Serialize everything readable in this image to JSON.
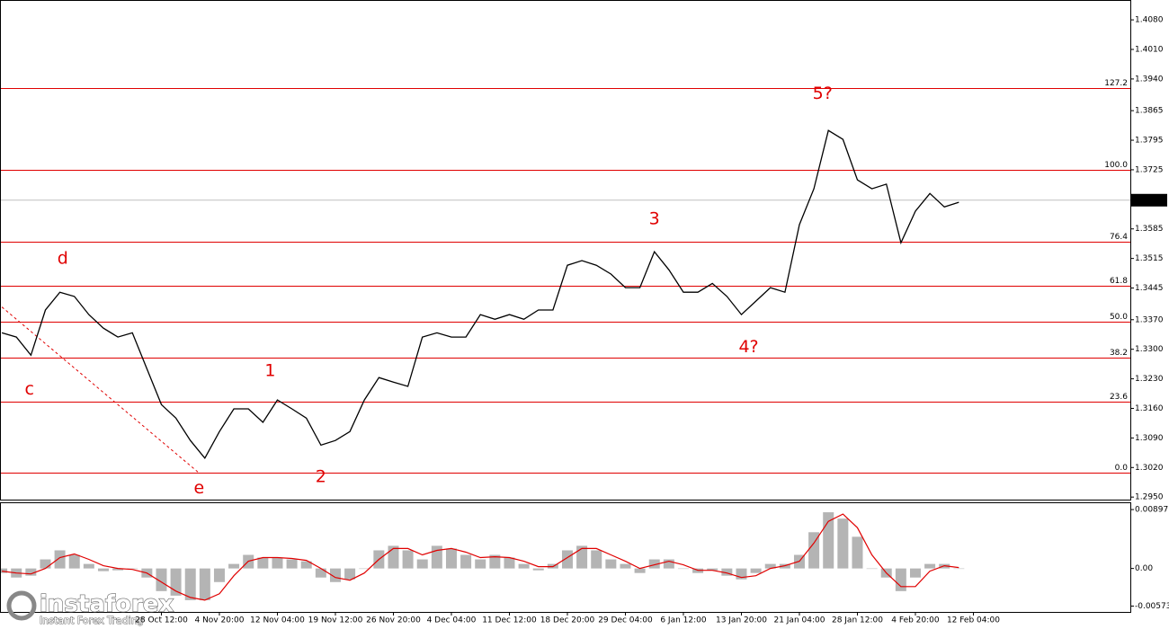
{
  "chart_data": [
    {
      "type": "line",
      "color": "#000000",
      "categories": [
        null,
        null,
        null,
        null,
        null,
        null,
        null,
        null,
        null,
        null,
        null,
        "28 Oct 12:00",
        null,
        null,
        null,
        "4 Nov 20:00",
        null,
        null,
        null,
        "12 Nov 04:00",
        null,
        null,
        null,
        "19 Nov 12:00",
        null,
        null,
        null,
        "26 Nov 20:00",
        null,
        null,
        null,
        "4 Dec 04:00",
        null,
        null,
        null,
        "11 Dec 12:00",
        null,
        null,
        null,
        "18 Dec 20:00",
        null,
        null,
        null,
        "29 Dec 04:00",
        null,
        null,
        null,
        "6 Jan 12:00",
        null,
        null,
        null,
        "13 Jan 20:00",
        null,
        null,
        null,
        "21 Jan 04:00",
        null,
        null,
        null,
        "28 Jan 12:00",
        null,
        null,
        null,
        "4 Feb 20:00",
        null,
        null,
        null,
        "12 Feb 04:00"
      ],
      "values": [
        1.3339,
        1.3329,
        1.3286,
        1.3393,
        1.3435,
        1.3425,
        1.3382,
        1.335,
        1.3329,
        1.3339,
        1.3254,
        1.3169,
        1.3137,
        1.3084,
        1.3042,
        1.3105,
        1.3159,
        1.3159,
        1.3127,
        1.318,
        1.3159,
        1.3137,
        1.3073,
        1.3084,
        1.3105,
        1.318,
        1.3233,
        1.3222,
        1.3212,
        1.3329,
        1.3339,
        1.3329,
        1.3329,
        1.3382,
        1.3371,
        1.3382,
        1.3371,
        1.3393,
        1.3393,
        1.3499,
        1.351,
        1.3499,
        1.3478,
        1.3446,
        1.3446,
        1.3531,
        1.3488,
        1.3435,
        1.3435,
        1.3456,
        1.3425,
        1.3382,
        1.3414,
        1.3446,
        1.3435,
        1.3595,
        1.368,
        1.3818,
        1.3797,
        1.3701,
        1.368,
        1.3691,
        1.3552,
        1.3627,
        1.3669,
        1.3637,
        1.3648,
        null
      ],
      "ylim": [
        1.2944,
        1.4127
      ],
      "yticks": [
        {
          "value": 1.408,
          "label": "1.4080"
        },
        {
          "value": 1.401,
          "label": "1.4010"
        },
        {
          "value": 1.394,
          "label": "1.3940"
        },
        {
          "value": 1.3865,
          "label": "1.3865"
        },
        {
          "value": 1.3795,
          "label": "1.3795"
        },
        {
          "value": 1.3725,
          "label": "1.3725"
        },
        {
          "value": 1.3585,
          "label": "1.3585"
        },
        {
          "value": 1.3515,
          "label": "1.3515"
        },
        {
          "value": 1.3445,
          "label": "1.3445"
        },
        {
          "value": 1.337,
          "label": "1.3370"
        },
        {
          "value": 1.33,
          "label": "1.3300"
        },
        {
          "value": 1.323,
          "label": "1.3230"
        },
        {
          "value": 1.316,
          "label": "1.3160"
        },
        {
          "value": 1.309,
          "label": "1.3090"
        },
        {
          "value": 1.302,
          "label": "1.3020"
        },
        {
          "value": 1.295,
          "label": "1.2950"
        }
      ],
      "last_price": 1.3653,
      "fib_color": "#e00000",
      "fib_levels": [
        {
          "value": 1.3918,
          "label": "127.2"
        },
        {
          "value": 1.3725,
          "label": "100.0"
        },
        {
          "value": 1.3554,
          "label": "76.4"
        },
        {
          "value": 1.345,
          "label": "61.8"
        },
        {
          "value": 1.3365,
          "label": "50.0"
        },
        {
          "value": 1.328,
          "label": "38.2"
        },
        {
          "value": 1.3176,
          "label": "23.6"
        },
        {
          "value": 1.3007,
          "label": "0.0"
        }
      ],
      "trendline": [
        [
          0,
          1.34
        ],
        [
          13.6,
          1.3007
        ]
      ],
      "annotations": [
        {
          "text": "c",
          "x": 1.9,
          "y": 1.3205
        },
        {
          "text": "d",
          "x": 4.2,
          "y": 1.3514
        },
        {
          "text": "e",
          "x": 13.6,
          "y": 1.2971
        },
        {
          "text": "1",
          "x": 18.5,
          "y": 1.3248
        },
        {
          "text": "2",
          "x": 22,
          "y": 1.2997
        },
        {
          "text": "3",
          "x": 45,
          "y": 1.3608
        },
        {
          "text": "4?",
          "x": 51.5,
          "y": 1.3305
        },
        {
          "text": "5?",
          "x": 56.6,
          "y": 1.3905
        }
      ]
    },
    {
      "type": "macd",
      "histogram": {
        "color": "#b4b4b4",
        "values": [
          -0.00069,
          -0.00138,
          -0.0011,
          0.00138,
          0.00276,
          0.00207,
          0.00069,
          -0.00041,
          -0.00028,
          0,
          -0.00138,
          -0.00345,
          -0.00414,
          -0.00483,
          -0.00483,
          -0.00207,
          0.00069,
          0.00207,
          0.00166,
          0.00166,
          0.00138,
          0.0011,
          -0.00138,
          -0.00207,
          -0.00166,
          0,
          0.00276,
          0.00345,
          0.00276,
          0.00138,
          0.00345,
          0.00304,
          0.00207,
          0.00138,
          0.00207,
          0.00166,
          0.00069,
          -0.00028,
          0.00069,
          0.00276,
          0.00345,
          0.00276,
          0.00138,
          0.00069,
          -0.00069,
          0.00138,
          0.00138,
          0,
          -0.00069,
          -0.00028,
          -0.0011,
          -0.00166,
          -0.00069,
          0.00069,
          0.00069,
          0.00207,
          0.00552,
          0.00856,
          0.00759,
          0.00483,
          0,
          -0.00138,
          -0.00345,
          -0.00138,
          0.00069,
          0.00069,
          0,
          null
        ]
      },
      "signal": {
        "color": "#e00000",
        "values": [
          -0.00041,
          -0.00069,
          -0.00083,
          0,
          0.00166,
          0.00221,
          0.00138,
          0.00041,
          0,
          -0.00014,
          -0.00069,
          -0.00207,
          -0.00345,
          -0.00442,
          -0.00483,
          -0.00386,
          -0.0011,
          0.0011,
          0.00166,
          0.00166,
          0.00152,
          0.00124,
          0,
          -0.00138,
          -0.00179,
          -0.00069,
          0.00138,
          0.00304,
          0.00304,
          0.00207,
          0.00276,
          0.00304,
          0.00248,
          0.00166,
          0.00179,
          0.00166,
          0.0011,
          0.00028,
          0.00028,
          0.00166,
          0.00304,
          0.00304,
          0.00207,
          0.0011,
          0,
          0.00055,
          0.0011,
          0.00055,
          -0.00028,
          -0.00028,
          -0.00069,
          -0.00138,
          -0.0011,
          0,
          0.00041,
          0.0011,
          0.00386,
          0.00718,
          0.00828,
          0.00621,
          0.00207,
          -0.00069,
          -0.00276,
          -0.00276,
          -0.00041,
          0.00041,
          0.00014,
          null
        ]
      },
      "ylim": [
        -0.00662,
        0.00994
      ],
      "yticks": [
        0.00897,
        {
          "value": 0,
          "label": "0.00"
        },
        -0.00573
      ]
    }
  ],
  "branding": {
    "name": "instaforex",
    "tagline": "Instant Forex Trading"
  }
}
